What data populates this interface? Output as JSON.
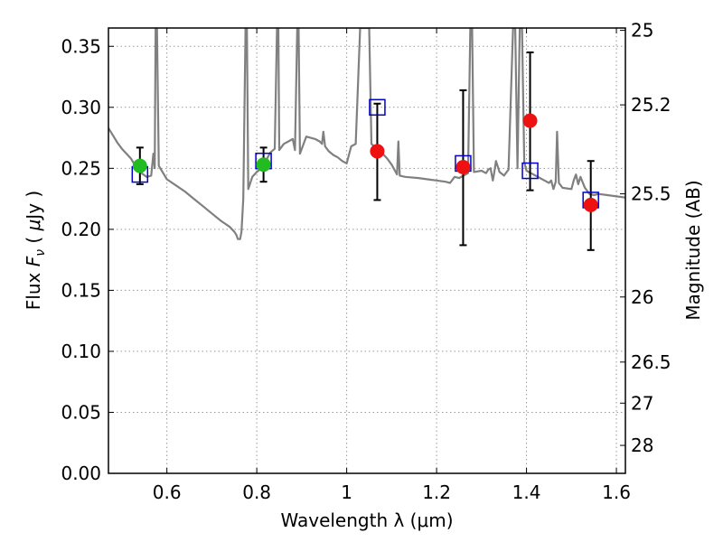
{
  "chart_data": {
    "type": "scatter",
    "title": "",
    "xlabel": "Wavelength  λ (μm)",
    "ylabel": "Flux  F_ν  ( μJy )",
    "ylabel_parts": {
      "pre": "Flux  ",
      "sym": "F",
      "sub": "ν",
      "post": "  ( ",
      "mu": "μ",
      "unit": "Jy )"
    },
    "y2label": "Magnitude (AB)",
    "xlim": [
      0.47,
      1.62
    ],
    "ylim": [
      0.0,
      0.365
    ],
    "grid": true,
    "legend": "none",
    "xticks": [
      {
        "value": 0.6,
        "label": "0.6"
      },
      {
        "value": 0.8,
        "label": "0.8"
      },
      {
        "value": 1.0,
        "label": "1"
      },
      {
        "value": 1.2,
        "label": "1.2"
      },
      {
        "value": 1.4,
        "label": "1.4"
      },
      {
        "value": 1.6,
        "label": "1.6"
      }
    ],
    "yticks": [
      {
        "value": 0.0,
        "label": "0.00"
      },
      {
        "value": 0.05,
        "label": "0.05"
      },
      {
        "value": 0.1,
        "label": "0.10"
      },
      {
        "value": 0.15,
        "label": "0.15"
      },
      {
        "value": 0.2,
        "label": "0.20"
      },
      {
        "value": 0.25,
        "label": "0.25"
      },
      {
        "value": 0.3,
        "label": "0.30"
      },
      {
        "value": 0.35,
        "label": "0.35"
      }
    ],
    "y2ticks": [
      {
        "value": 25,
        "label": "25"
      },
      {
        "value": 25.2,
        "label": "25.2"
      },
      {
        "value": 25.5,
        "label": "25.5"
      },
      {
        "value": 26,
        "label": "26"
      },
      {
        "value": 26.5,
        "label": "26.5"
      },
      {
        "value": 27,
        "label": "27"
      },
      {
        "value": 28,
        "label": "28"
      }
    ],
    "colors": {
      "sed": "#808080",
      "green": "#22bb22",
      "red": "#ee1111",
      "model_box": "#0000cc",
      "errorbar": "#000000",
      "grid": "#999999"
    },
    "series": [
      {
        "marker": "circle",
        "color": "green",
        "points": [
          {
            "x": 0.54,
            "y": 0.252,
            "ylow": 0.237,
            "yhigh": 0.267
          },
          {
            "x": 0.815,
            "y": 0.253,
            "ylow": 0.239,
            "yhigh": 0.267
          }
        ]
      },
      {
        "marker": "circle",
        "color": "red",
        "points": [
          {
            "x": 1.068,
            "y": 0.264,
            "ylow": 0.224,
            "yhigh": 0.303
          },
          {
            "x": 1.259,
            "y": 0.251,
            "ylow": 0.187,
            "yhigh": 0.314
          },
          {
            "x": 1.408,
            "y": 0.289,
            "ylow": 0.232,
            "yhigh": 0.345
          },
          {
            "x": 1.543,
            "y": 0.22,
            "ylow": 0.183,
            "yhigh": 0.256
          }
        ]
      },
      {
        "marker": "open-square",
        "color": "model_box",
        "points": [
          {
            "x": 0.54,
            "y": 0.245
          },
          {
            "x": 0.815,
            "y": 0.256
          },
          {
            "x": 1.068,
            "y": 0.3
          },
          {
            "x": 1.259,
            "y": 0.254
          },
          {
            "x": 1.408,
            "y": 0.248
          },
          {
            "x": 1.543,
            "y": 0.224
          }
        ]
      },
      {
        "marker": "line",
        "color": "sed",
        "points": [
          [
            0.47,
            0.283
          ],
          [
            0.48,
            0.277
          ],
          [
            0.49,
            0.271
          ],
          [
            0.5,
            0.266
          ],
          [
            0.51,
            0.262
          ],
          [
            0.52,
            0.258
          ],
          [
            0.53,
            0.252
          ],
          [
            0.54,
            0.247
          ],
          [
            0.555,
            0.243
          ],
          [
            0.565,
            0.244
          ],
          [
            0.57,
            0.262
          ],
          [
            0.573,
            0.25
          ],
          [
            0.575,
            0.365
          ],
          [
            0.578,
            0.365
          ],
          [
            0.582,
            0.252
          ],
          [
            0.6,
            0.241
          ],
          [
            0.62,
            0.236
          ],
          [
            0.64,
            0.231
          ],
          [
            0.66,
            0.225
          ],
          [
            0.68,
            0.219
          ],
          [
            0.7,
            0.213
          ],
          [
            0.72,
            0.207
          ],
          [
            0.74,
            0.202
          ],
          [
            0.75,
            0.198
          ],
          [
            0.755,
            0.195
          ],
          [
            0.758,
            0.192
          ],
          [
            0.763,
            0.192
          ],
          [
            0.766,
            0.198
          ],
          [
            0.77,
            0.225
          ],
          [
            0.775,
            0.365
          ],
          [
            0.778,
            0.365
          ],
          [
            0.781,
            0.233
          ],
          [
            0.79,
            0.243
          ],
          [
            0.8,
            0.247
          ],
          [
            0.81,
            0.25
          ],
          [
            0.82,
            0.256
          ],
          [
            0.83,
            0.263
          ],
          [
            0.84,
            0.266
          ],
          [
            0.845,
            0.365
          ],
          [
            0.848,
            0.365
          ],
          [
            0.85,
            0.265
          ],
          [
            0.86,
            0.27
          ],
          [
            0.87,
            0.272
          ],
          [
            0.88,
            0.274
          ],
          [
            0.885,
            0.265
          ],
          [
            0.89,
            0.365
          ],
          [
            0.893,
            0.365
          ],
          [
            0.896,
            0.262
          ],
          [
            0.91,
            0.276
          ],
          [
            0.93,
            0.274
          ],
          [
            0.94,
            0.272
          ],
          [
            0.945,
            0.27
          ],
          [
            0.948,
            0.28
          ],
          [
            0.952,
            0.268
          ],
          [
            0.96,
            0.264
          ],
          [
            0.97,
            0.261
          ],
          [
            0.98,
            0.259
          ],
          [
            0.99,
            0.256
          ],
          [
            1.0,
            0.254
          ],
          [
            1.01,
            0.268
          ],
          [
            1.02,
            0.27
          ],
          [
            1.03,
            0.365
          ],
          [
            1.04,
            0.365
          ],
          [
            1.05,
            0.365
          ],
          [
            1.055,
            0.27
          ],
          [
            1.07,
            0.265
          ],
          [
            1.08,
            0.262
          ],
          [
            1.09,
            0.258
          ],
          [
            1.1,
            0.253
          ],
          [
            1.112,
            0.245
          ],
          [
            1.115,
            0.272
          ],
          [
            1.118,
            0.244
          ],
          [
            1.13,
            0.243
          ],
          [
            1.16,
            0.242
          ],
          [
            1.18,
            0.241
          ],
          [
            1.2,
            0.24
          ],
          [
            1.22,
            0.239
          ],
          [
            1.23,
            0.238
          ],
          [
            1.24,
            0.243
          ],
          [
            1.25,
            0.242
          ],
          [
            1.26,
            0.244
          ],
          [
            1.27,
            0.246
          ],
          [
            1.275,
            0.365
          ],
          [
            1.279,
            0.365
          ],
          [
            1.283,
            0.247
          ],
          [
            1.3,
            0.248
          ],
          [
            1.31,
            0.246
          ],
          [
            1.315,
            0.249
          ],
          [
            1.32,
            0.25
          ],
          [
            1.325,
            0.24
          ],
          [
            1.328,
            0.246
          ],
          [
            1.332,
            0.256
          ],
          [
            1.34,
            0.247
          ],
          [
            1.35,
            0.244
          ],
          [
            1.36,
            0.249
          ],
          [
            1.37,
            0.365
          ],
          [
            1.375,
            0.365
          ],
          [
            1.38,
            0.25
          ],
          [
            1.385,
            0.365
          ],
          [
            1.39,
            0.365
          ],
          [
            1.395,
            0.255
          ],
          [
            1.4,
            0.248
          ],
          [
            1.41,
            0.246
          ],
          [
            1.42,
            0.244
          ],
          [
            1.43,
            0.242
          ],
          [
            1.44,
            0.24
          ],
          [
            1.45,
            0.238
          ],
          [
            1.455,
            0.24
          ],
          [
            1.46,
            0.233
          ],
          [
            1.465,
            0.239
          ],
          [
            1.468,
            0.28
          ],
          [
            1.472,
            0.238
          ],
          [
            1.48,
            0.234
          ],
          [
            1.5,
            0.233
          ],
          [
            1.505,
            0.24
          ],
          [
            1.51,
            0.245
          ],
          [
            1.515,
            0.237
          ],
          [
            1.52,
            0.243
          ],
          [
            1.53,
            0.234
          ],
          [
            1.54,
            0.229
          ],
          [
            1.55,
            0.228
          ],
          [
            1.56,
            0.229
          ],
          [
            1.58,
            0.228
          ],
          [
            1.6,
            0.227
          ],
          [
            1.62,
            0.226
          ]
        ]
      }
    ]
  }
}
